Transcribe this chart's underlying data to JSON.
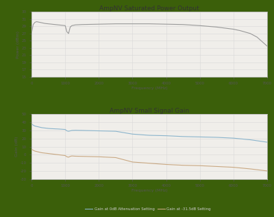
{
  "title1": "AmpNV Saturated Power Output",
  "title2": "AmpNV Small Signal Gain",
  "xlabel": "Frequency (MHz)",
  "ylabel1": "Power (dBm)",
  "ylabel2": "Gain (dB)",
  "bg_outer": "#3b5f0a",
  "bg_inner": "#f0eeea",
  "grid_color": "#d8d8d8",
  "line_color_power": "#999999",
  "line_color_gain0": "#8ab4cc",
  "line_color_gain315": "#c9a882",
  "legend_label_0dB": "Gain at 0dB Attenuation Setting",
  "legend_label_315dB": "Gain at -31.5dB Setting",
  "power_freq": [
    0,
    50,
    100,
    150,
    200,
    300,
    400,
    500,
    600,
    700,
    800,
    900,
    1000,
    1050,
    1100,
    1150,
    1200,
    1300,
    1500,
    2000,
    2500,
    3000,
    3500,
    4000,
    4500,
    5000,
    5500,
    6000,
    6200,
    6500,
    6700,
    7000
  ],
  "power_vals": [
    27.0,
    29.5,
    30.1,
    30.3,
    30.2,
    30.0,
    29.8,
    29.7,
    29.6,
    29.5,
    29.4,
    29.3,
    29.2,
    27.5,
    27.0,
    28.8,
    29.2,
    29.4,
    29.5,
    29.6,
    29.7,
    29.7,
    29.7,
    29.6,
    29.5,
    29.2,
    28.8,
    28.2,
    27.8,
    27.0,
    26.0,
    23.5
  ],
  "gain_freq": [
    0,
    50,
    100,
    200,
    300,
    400,
    500,
    600,
    700,
    800,
    900,
    1000,
    1050,
    1100,
    1150,
    1200,
    1300,
    1500,
    2000,
    2500,
    3000,
    3500,
    4000,
    4500,
    5000,
    5500,
    6000,
    6500,
    7000
  ],
  "gain0_vals": [
    38.5,
    36.5,
    35.5,
    34.5,
    33.5,
    33.0,
    32.5,
    32.2,
    32.0,
    31.8,
    31.5,
    31.2,
    29.5,
    29.0,
    29.5,
    30.0,
    30.2,
    30.0,
    29.5,
    29.0,
    25.5,
    24.0,
    23.5,
    22.5,
    22.0,
    21.5,
    20.5,
    18.5,
    15.5
  ],
  "gain315_vals": [
    7.0,
    5.5,
    4.5,
    3.5,
    2.5,
    2.0,
    1.5,
    1.0,
    0.5,
    0.0,
    -0.5,
    -1.0,
    -2.5,
    -3.0,
    -2.0,
    -1.5,
    -1.8,
    -2.0,
    -2.5,
    -3.5,
    -9.0,
    -10.5,
    -12.0,
    -13.0,
    -13.5,
    -14.5,
    -15.5,
    -17.5,
    -20.0
  ],
  "power_ylim": [
    15,
    33
  ],
  "power_yticks": [
    15,
    17,
    19,
    21,
    23,
    25,
    27,
    29,
    31,
    33
  ],
  "gain_ylim": [
    -30,
    50
  ],
  "gain_yticks": [
    -30,
    -20,
    -10,
    0,
    10,
    20,
    30,
    40,
    50
  ],
  "xlim": [
    0,
    7000
  ],
  "xticks": [
    0,
    1000,
    2000,
    3000,
    4000,
    5000,
    6000,
    7000
  ]
}
